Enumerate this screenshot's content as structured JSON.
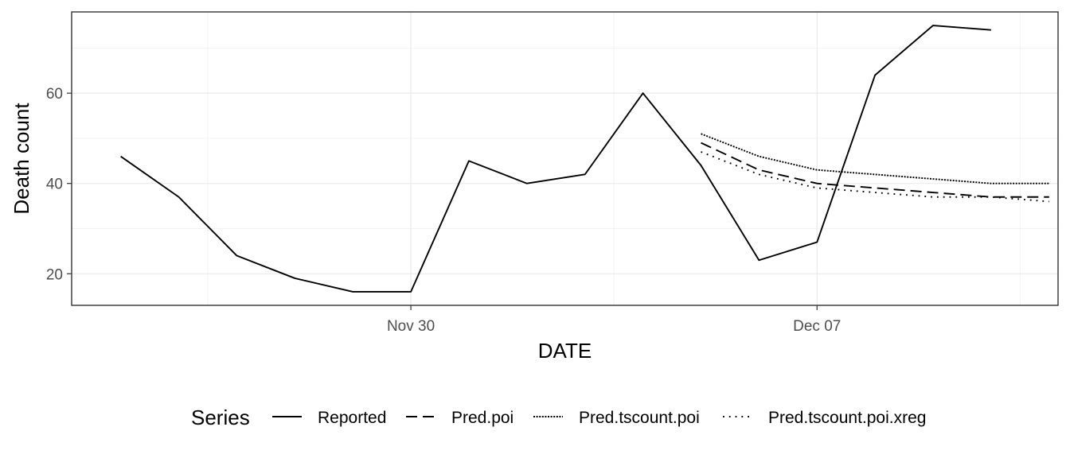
{
  "chart_data": {
    "type": "line",
    "xlabel": "DATE",
    "ylabel": "Death count",
    "x_ticks": [
      {
        "date": "2020-11-30",
        "label": "Nov 30"
      },
      {
        "date": "2020-12-07",
        "label": "Dec 07"
      }
    ],
    "y_ticks": [
      20,
      40,
      60
    ],
    "xlim": [
      "2020-11-24",
      "2020-12-11"
    ],
    "ylim": [
      13,
      78
    ],
    "grid": true,
    "legend": {
      "title": "Series",
      "position": "bottom"
    },
    "series": [
      {
        "name": "Reported",
        "linestyle": "solid",
        "points": [
          [
            "2020-11-25",
            46
          ],
          [
            "2020-11-26",
            37
          ],
          [
            "2020-11-27",
            24
          ],
          [
            "2020-11-28",
            19
          ],
          [
            "2020-11-29",
            16
          ],
          [
            "2020-11-30",
            16
          ],
          [
            "2020-12-01",
            45
          ],
          [
            "2020-12-02",
            40
          ],
          [
            "2020-12-03",
            42
          ],
          [
            "2020-12-04",
            60
          ],
          [
            "2020-12-05",
            44
          ],
          [
            "2020-12-06",
            23
          ],
          [
            "2020-12-07",
            27
          ],
          [
            "2020-12-08",
            64
          ],
          [
            "2020-12-09",
            75
          ],
          [
            "2020-12-10",
            74
          ]
        ]
      },
      {
        "name": "Pred.poi",
        "linestyle": "dashed",
        "points": [
          [
            "2020-12-05",
            49
          ],
          [
            "2020-12-06",
            43
          ],
          [
            "2020-12-07",
            40
          ],
          [
            "2020-12-08",
            39
          ],
          [
            "2020-12-09",
            38
          ],
          [
            "2020-12-10",
            37
          ],
          [
            "2020-12-11",
            37
          ]
        ]
      },
      {
        "name": "Pred.tscount.poi",
        "linestyle": "dotted-fine",
        "points": [
          [
            "2020-12-05",
            51
          ],
          [
            "2020-12-06",
            46
          ],
          [
            "2020-12-07",
            43
          ],
          [
            "2020-12-08",
            42
          ],
          [
            "2020-12-09",
            41
          ],
          [
            "2020-12-10",
            40
          ],
          [
            "2020-12-11",
            40
          ]
        ]
      },
      {
        "name": "Pred.tscount.poi.xreg",
        "linestyle": "dotted",
        "points": [
          [
            "2020-12-05",
            47
          ],
          [
            "2020-12-06",
            42
          ],
          [
            "2020-12-07",
            39
          ],
          [
            "2020-12-08",
            38
          ],
          [
            "2020-12-09",
            37
          ],
          [
            "2020-12-10",
            37
          ],
          [
            "2020-12-11",
            36
          ]
        ]
      }
    ],
    "colors": {
      "line": "#000000",
      "panel_border": "#333333",
      "grid": "#ebebeb"
    }
  }
}
